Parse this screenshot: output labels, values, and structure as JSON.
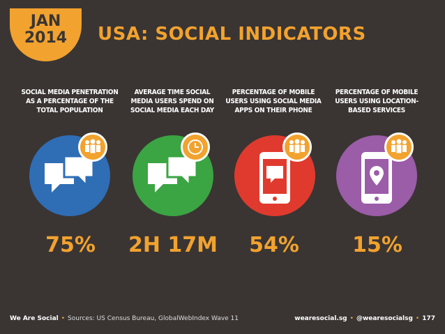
{
  "header": {
    "month": "JAN",
    "year": "2014",
    "title": "USA: SOCIAL INDICATORS"
  },
  "indicators": [
    {
      "label": "SOCIAL MEDIA PENETRATION AS A PERCENTAGE OF THE TOTAL POPULATION",
      "value": "75%",
      "color": "#2f6db5",
      "icon": "speech-bubbles-icon",
      "badge_icon": "people-icon"
    },
    {
      "label": "AVERAGE TIME SOCIAL MEDIA USERS SPEND ON SOCIAL MEDIA EACH DAY",
      "value": "2H 17M",
      "color": "#3aa542",
      "icon": "speech-bubbles-icon",
      "badge_icon": "clock-icon"
    },
    {
      "label": "PERCENTAGE OF MOBILE USERS USING SOCIAL MEDIA APPS ON THEIR PHONE",
      "value": "54%",
      "color": "#e03a2e",
      "icon": "phone-chat-icon",
      "badge_icon": "people-icon"
    },
    {
      "label": "PERCENTAGE OF MOBILE USERS USING LOCATION-BASED SERVICES",
      "value": "15%",
      "color": "#9b5ca8",
      "icon": "phone-location-icon",
      "badge_icon": "people-icon"
    }
  ],
  "footer": {
    "brand": "We Are Social",
    "sources": "Sources: US Census Bureau, GlobalWebIndex Wave 11",
    "site": "wearesocial.sg",
    "handle": "@wearesocialsg",
    "page": "177"
  }
}
